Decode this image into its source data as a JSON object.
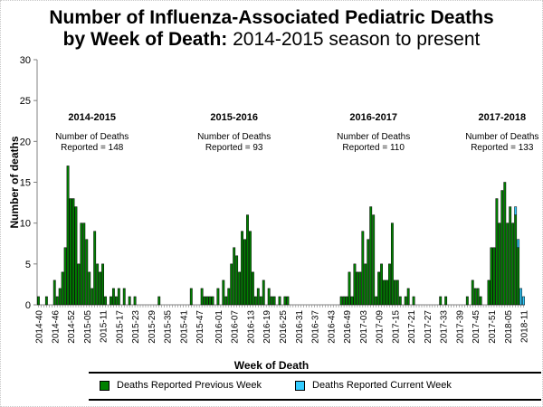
{
  "title": {
    "line1": "Number of Influenza-Associated Pediatric Deaths",
    "line2_bold": "by Week of Death:",
    "line2_rest": " 2014-2015 season to present"
  },
  "colors": {
    "previous": "#008000",
    "current": "#33CCFF",
    "axis": "#808080"
  },
  "legend": {
    "previous_label": "Deaths Reported Previous Week",
    "current_label": "Deaths Reported Current Week"
  },
  "chart_data": {
    "type": "bar",
    "stacked": true,
    "title": "Number of Influenza-Associated Pediatric Deaths by Week of Death: 2014-2015 season to present",
    "xlabel": "Week of Death",
    "ylabel": "Number of deaths",
    "ylim": [
      0,
      30
    ],
    "yticks": [
      0,
      5,
      10,
      15,
      20,
      25,
      30
    ],
    "grid": false,
    "legend_position": "bottom",
    "xtick_labels": [
      "2014-40",
      "2014-46",
      "2014-52",
      "2015-05",
      "2015-11",
      "2015-17",
      "2015-23",
      "2015-29",
      "2015-35",
      "2015-41",
      "2015-47",
      "2016-01",
      "2016-07",
      "2016-13",
      "2016-19",
      "2016-25",
      "2016-31",
      "2016-37",
      "2016-43",
      "2016-49",
      "2017-03",
      "2017-09",
      "2017-15",
      "2017-21",
      "2017-27",
      "2017-33",
      "2017-39",
      "2017-45",
      "2017-51",
      "2018-05",
      "2018-11"
    ],
    "weeks_per_year": {
      "2014": 53,
      "2015": 53,
      "2016": 52,
      "2017": 52
    },
    "start_week": "2014-40",
    "end_week": "2018-11",
    "series": [
      {
        "name": "Deaths Reported Previous Week",
        "color": "#008000",
        "values": {
          "2014-40": 1,
          "2014-43": 1,
          "2014-46": 3,
          "2014-47": 1,
          "2014-48": 2,
          "2014-49": 4,
          "2014-50": 7,
          "2014-51": 17,
          "2014-52": 13,
          "2014-53": 13,
          "2015-01": 12,
          "2015-02": 5,
          "2015-03": 10,
          "2015-04": 10,
          "2015-05": 8,
          "2015-06": 4,
          "2015-07": 2,
          "2015-08": 9,
          "2015-09": 5,
          "2015-10": 4,
          "2015-11": 5,
          "2015-12": 1,
          "2015-14": 1,
          "2015-15": 2,
          "2015-16": 1,
          "2015-17": 2,
          "2015-19": 2,
          "2015-21": 1,
          "2015-23": 1,
          "2015-32": 1,
          "2015-44": 2,
          "2015-48": 2,
          "2015-49": 1,
          "2015-50": 1,
          "2015-51": 1,
          "2015-52": 1,
          "2016-01": 2,
          "2016-03": 3,
          "2016-04": 1,
          "2016-05": 2,
          "2016-06": 5,
          "2016-07": 7,
          "2016-08": 6,
          "2016-09": 4,
          "2016-10": 9,
          "2016-11": 8,
          "2016-12": 11,
          "2016-13": 9,
          "2016-14": 4,
          "2016-15": 1,
          "2016-16": 2,
          "2016-17": 1,
          "2016-18": 3,
          "2016-20": 2,
          "2016-21": 1,
          "2016-22": 1,
          "2016-24": 1,
          "2016-26": 1,
          "2016-27": 1,
          "2016-47": 1,
          "2016-48": 1,
          "2016-49": 1,
          "2016-50": 4,
          "2016-51": 1,
          "2016-52": 5,
          "2017-01": 4,
          "2017-02": 4,
          "2017-03": 9,
          "2017-04": 5,
          "2017-05": 8,
          "2017-06": 12,
          "2017-07": 11,
          "2017-08": 1,
          "2017-09": 4,
          "2017-10": 5,
          "2017-11": 3,
          "2017-12": 3,
          "2017-13": 5,
          "2017-14": 10,
          "2017-15": 3,
          "2017-16": 3,
          "2017-17": 1,
          "2017-19": 1,
          "2017-20": 2,
          "2017-22": 1,
          "2017-32": 1,
          "2017-34": 1,
          "2017-42": 1,
          "2017-44": 3,
          "2017-45": 2,
          "2017-46": 2,
          "2017-47": 1,
          "2017-50": 3,
          "2017-51": 7,
          "2017-52": 7,
          "2018-01": 13,
          "2018-02": 10,
          "2018-03": 14,
          "2018-04": 15,
          "2018-05": 10,
          "2018-06": 12,
          "2018-07": 10,
          "2018-08": 11,
          "2018-09": 7
        }
      },
      {
        "name": "Deaths Reported Current Week",
        "color": "#33CCFF",
        "values": {
          "2018-08": 1,
          "2018-09": 1,
          "2018-10": 2,
          "2018-11": 1
        }
      }
    ],
    "annotations": [
      {
        "season": "2014-2015",
        "text1": "Number of Deaths",
        "text2": "Reported = 148",
        "center_week": "2015-07"
      },
      {
        "season": "2015-2016",
        "text1": "Number of Deaths",
        "text2": "Reported = 93",
        "center_week": "2016-07"
      },
      {
        "season": "2016-2017",
        "text1": "Number of Deaths",
        "text2": "Reported = 110",
        "center_week": "2017-07"
      },
      {
        "season": "2017-2018",
        "text1": "Number of Deaths",
        "text2": "Reported = 133",
        "center_week": "2018-03"
      }
    ]
  }
}
